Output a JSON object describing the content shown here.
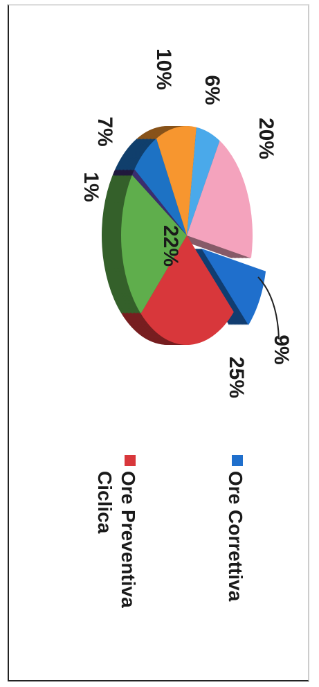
{
  "chart_data": {
    "type": "pie",
    "categories": [
      null,
      "Ore Correttiva",
      "Ore Preventiva Ciclica",
      null,
      null,
      null,
      null,
      null
    ],
    "values": [
      20,
      9,
      25,
      22,
      1,
      7,
      10,
      6
    ],
    "value_labels": [
      "20%",
      "9%",
      "25%",
      "22%",
      "1%",
      "7%",
      "10%",
      "6%"
    ],
    "colors": [
      "#f4a3bd",
      "#1f6fcc",
      "#d8373b",
      "#5fae4c",
      "#3b2d6e",
      "#1d72c4",
      "#f7962f",
      "#4aa9ea"
    ]
  }
}
